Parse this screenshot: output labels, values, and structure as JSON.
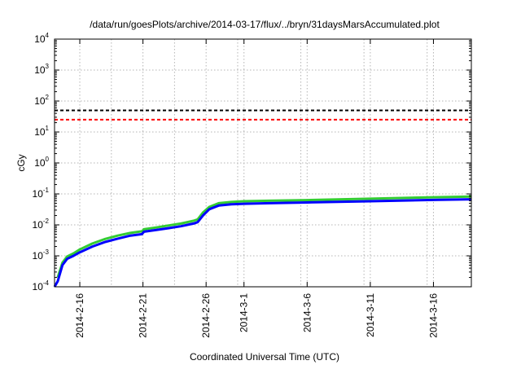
{
  "chart_data": {
    "type": "line",
    "title": "/data/run/goesPlots/archive/2014-03-17/flux/../bryn/31daysMarsAccumulated.plot",
    "xlabel": "Coordinated Universal Time (UTC)",
    "ylabel": "cGy",
    "yscale": "log",
    "xscale": "time",
    "xlim": [
      "2014-02-14T00:00",
      "2014-03-19T00:00"
    ],
    "ylim": [
      0.0001,
      10000
    ],
    "grid": true,
    "legend": "none",
    "x_ticks": [
      "2014-2-16",
      "2014-2-21",
      "2014-2-26",
      "2014-3-1",
      "2014-3-6",
      "2014-3-11",
      "2014-3-16"
    ],
    "y_ticks": [
      {
        "base": "10",
        "exp": "-4",
        "value": 0.0001
      },
      {
        "base": "10",
        "exp": "-3",
        "value": 0.001
      },
      {
        "base": "10",
        "exp": "-2",
        "value": 0.01
      },
      {
        "base": "10",
        "exp": "-1",
        "value": 0.1
      },
      {
        "base": "10",
        "exp": "0",
        "value": 1
      },
      {
        "base": "10",
        "exp": "1",
        "value": 10
      },
      {
        "base": "10",
        "exp": "2",
        "value": 100
      },
      {
        "base": "10",
        "exp": "3",
        "value": 1000
      },
      {
        "base": "10",
        "exp": "4",
        "value": 10000
      }
    ],
    "reference_lines": [
      {
        "value": 50,
        "color": "#000000",
        "style": "dashed"
      },
      {
        "value": 25,
        "color": "#ff0000",
        "style": "dashed"
      }
    ],
    "series": [
      {
        "color": "#33cc33",
        "x": [
          "2014-02-14T06:00",
          "2014-02-14T15:00",
          "2014-02-15T00:00",
          "2014-02-15T12:00",
          "2014-02-16T00:00",
          "2014-02-17T00:00",
          "2014-02-18T00:00",
          "2014-02-19T00:00",
          "2014-02-20T00:00",
          "2014-02-20T22:00",
          "2014-02-21T02:00",
          "2014-02-22T00:00",
          "2014-02-23T00:00",
          "2014-02-24T00:00",
          "2014-02-25T00:00",
          "2014-02-25T08:00",
          "2014-02-25T18:00",
          "2014-02-26T06:00",
          "2014-02-27T00:00",
          "2014-02-28T00:00",
          "2014-03-01T00:00",
          "2014-03-03T00:00",
          "2014-03-06T00:00",
          "2014-03-11T00:00",
          "2014-03-16T00:00",
          "2014-03-19T00:00"
        ],
        "y": [
          0.0002,
          0.0006,
          0.00095,
          0.0012,
          0.0016,
          0.0025,
          0.0035,
          0.0045,
          0.0055,
          0.0062,
          0.0072,
          0.0082,
          0.0095,
          0.011,
          0.0135,
          0.015,
          0.025,
          0.038,
          0.05,
          0.055,
          0.058,
          0.06,
          0.063,
          0.07,
          0.078,
          0.082
        ]
      },
      {
        "color": "#0000ff",
        "x": [
          "2014-02-14T00:00",
          "2014-02-14T06:00",
          "2014-02-14T15:00",
          "2014-02-15T00:00",
          "2014-02-15T12:00",
          "2014-02-16T00:00",
          "2014-02-17T00:00",
          "2014-02-18T00:00",
          "2014-02-19T00:00",
          "2014-02-20T00:00",
          "2014-02-20T22:00",
          "2014-02-21T02:00",
          "2014-02-22T00:00",
          "2014-02-23T00:00",
          "2014-02-24T00:00",
          "2014-02-25T00:00",
          "2014-02-25T08:00",
          "2014-02-25T18:00",
          "2014-02-26T06:00",
          "2014-02-27T00:00",
          "2014-02-28T00:00",
          "2014-03-01T00:00",
          "2014-03-03T00:00",
          "2014-03-06T00:00",
          "2014-03-11T00:00",
          "2014-03-16T00:00",
          "2014-03-19T00:00"
        ],
        "y": [
          0.0001,
          0.00015,
          0.0005,
          0.0008,
          0.001,
          0.0013,
          0.002,
          0.0028,
          0.0036,
          0.0045,
          0.005,
          0.006,
          0.0068,
          0.0078,
          0.009,
          0.011,
          0.0122,
          0.02,
          0.032,
          0.042,
          0.046,
          0.048,
          0.05,
          0.053,
          0.058,
          0.064,
          0.067
        ]
      }
    ]
  }
}
